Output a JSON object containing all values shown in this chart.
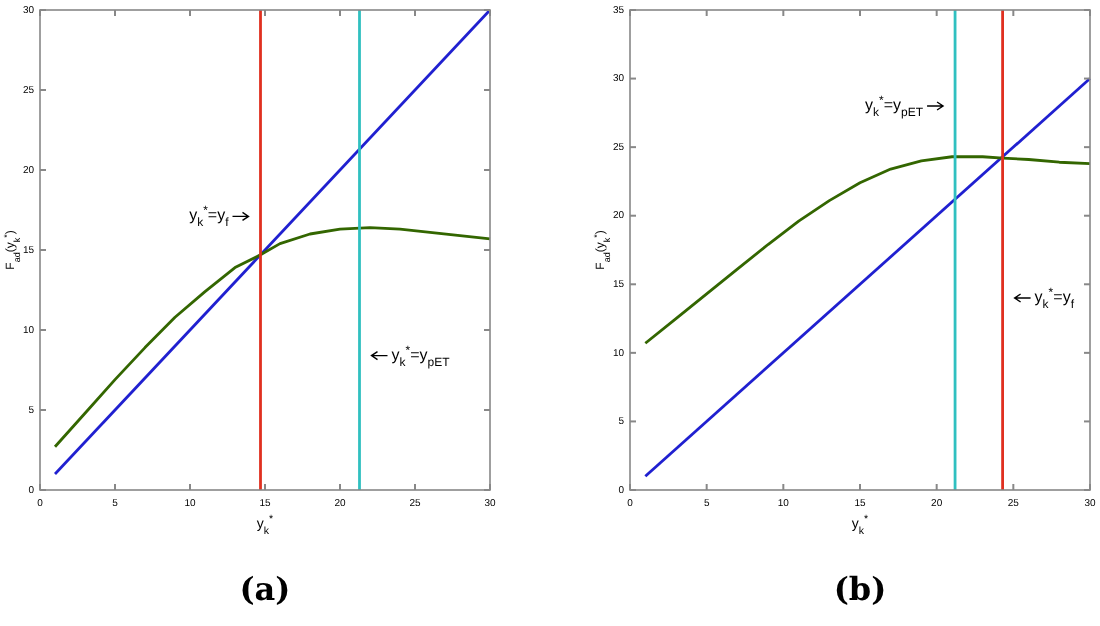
{
  "chart_data": [
    {
      "type": "line",
      "xlabel": "y$_{k}$$^{*}$",
      "ylabel": "F$_{ad}$(y$_{k}$$^{*}$)",
      "annotations": [
        "(a)"
      ],
      "xlim": [
        0,
        30
      ],
      "ylim": [
        0,
        30
      ],
      "xticks": [
        0,
        5,
        10,
        15,
        20,
        25,
        30
      ],
      "yticks": [
        0,
        5,
        10,
        15,
        20,
        25,
        30
      ],
      "grid": false,
      "series": [
        {
          "color": "#2020d0",
          "x": [
            1,
            30
          ],
          "values": [
            1,
            30
          ]
        },
        {
          "color": "#336600",
          "x": [
            1,
            3,
            5,
            7,
            9,
            11,
            13,
            14.7,
            16,
            18,
            20,
            22,
            24,
            26,
            28,
            30
          ],
          "values": [
            2.7,
            4.8,
            6.9,
            8.9,
            10.8,
            12.4,
            13.9,
            14.7,
            15.4,
            16.0,
            16.3,
            16.4,
            16.3,
            16.1,
            15.9,
            15.7
          ]
        }
      ],
      "ref_lines": [
        {
          "axis": "x",
          "value": 14.7,
          "label": "y$_{k}$$^{*}$=y$_{f}$",
          "color": "#e03020"
        },
        {
          "axis": "x",
          "value": 21.3,
          "label": "y$_{k}$$^{*}$=y$_{pET}$",
          "color": "#30c0c0"
        }
      ]
    },
    {
      "type": "line",
      "xlabel": "y$_{k}$$^{*}$",
      "ylabel": "F$_{ad}$(y$_{k}$$^{*}$)",
      "annotations": [
        "(b)"
      ],
      "xlim": [
        0,
        30
      ],
      "ylim": [
        0,
        35
      ],
      "xticks": [
        0,
        5,
        10,
        15,
        20,
        25,
        30
      ],
      "yticks": [
        0,
        5,
        10,
        15,
        20,
        25,
        30,
        35
      ],
      "grid": false,
      "series": [
        {
          "color": "#2020d0",
          "x": [
            1,
            30
          ],
          "values": [
            1,
            30
          ]
        },
        {
          "color": "#336600",
          "x": [
            1,
            3,
            5,
            7,
            9,
            11,
            13,
            15,
            17,
            19,
            21,
            23,
            24.3,
            26,
            28,
            30
          ],
          "values": [
            10.7,
            12.5,
            14.3,
            16.1,
            17.9,
            19.6,
            21.1,
            22.4,
            23.4,
            24.0,
            24.3,
            24.3,
            24.2,
            24.1,
            23.9,
            23.8
          ]
        }
      ],
      "ref_lines": [
        {
          "axis": "x",
          "value": 21.2,
          "label": "y$_{k}$$^{*}$=y$_{pET}$",
          "color": "#30c0c0"
        },
        {
          "axis": "x",
          "value": 24.3,
          "label": "y$_{k}$$^{*}$=y$_{f}$",
          "color": "#e03020"
        }
      ]
    }
  ]
}
